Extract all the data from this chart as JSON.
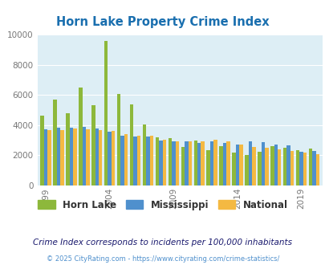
{
  "title": "Horn Lake Property Crime Index",
  "years": [
    1999,
    2000,
    2001,
    2002,
    2003,
    2004,
    2005,
    2006,
    2007,
    2008,
    2009,
    2010,
    2011,
    2012,
    2013,
    2014,
    2015,
    2016,
    2017,
    2018,
    2019,
    2020
  ],
  "horn_lake": [
    4650,
    5700,
    4800,
    6500,
    5300,
    9550,
    6050,
    5350,
    4050,
    3200,
    3150,
    2550,
    3000,
    2350,
    2600,
    2200,
    2000,
    2250,
    2600,
    2500,
    2350,
    2450
  ],
  "mississippi": [
    3700,
    3850,
    3850,
    3900,
    3800,
    3550,
    3300,
    3250,
    3250,
    3000,
    2950,
    2900,
    2800,
    2950,
    2800,
    2700,
    2900,
    2850,
    2700,
    2650,
    2250,
    2300
  ],
  "national": [
    3650,
    3650,
    3750,
    3700,
    3650,
    3600,
    3380,
    3320,
    3280,
    3050,
    2950,
    2900,
    2950,
    3020,
    2900,
    2700,
    2550,
    2500,
    2380,
    2290,
    2200,
    2050
  ],
  "horn_lake_color": "#8db83b",
  "mississippi_color": "#4f90cd",
  "national_color": "#f4b942",
  "bg_color": "#ddeef5",
  "ylim": [
    0,
    10000
  ],
  "yticks": [
    0,
    2000,
    4000,
    6000,
    8000,
    10000
  ],
  "tick_years": [
    1999,
    2004,
    2009,
    2014,
    2019
  ],
  "subtitle": "Crime Index corresponds to incidents per 100,000 inhabitants",
  "footer": "© 2025 CityRating.com - https://www.cityrating.com/crime-statistics/",
  "legend_horn_lake": "Horn Lake",
  "legend_mississippi": "Mississippi",
  "legend_national": "National",
  "title_color": "#1a6faf",
  "subtitle_color": "#1a1a6e",
  "footer_color": "#4f90cd"
}
